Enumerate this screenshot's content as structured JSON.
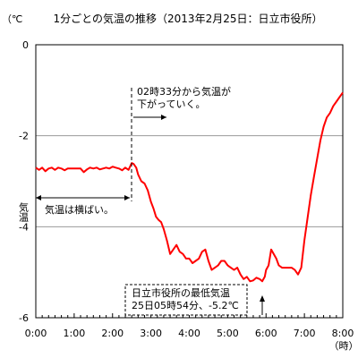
{
  "chart_data": {
    "type": "line",
    "title": "1分ごとの気温の推移（2013年2月25日：日立市役所）",
    "ylabel": "気温",
    "yunit": "（℃",
    "xunit": "（時）",
    "xlim": [
      0,
      8
    ],
    "ylim": [
      -6,
      0
    ],
    "x_ticks": [
      "0:00",
      "1:00",
      "2:00",
      "3:00",
      "4:00",
      "5:00",
      "6:00",
      "7:00",
      "8:00"
    ],
    "y_ticks": [
      "0",
      "-2",
      "-4",
      "-6"
    ],
    "grid": "horizontal",
    "color": "#ff0000",
    "series": [
      {
        "x": [
          "0:00",
          "0:05",
          "0:10",
          "0:15",
          "0:20",
          "0:25",
          "0:30",
          "0:35",
          "0:40",
          "0:45",
          "0:50",
          "0:55",
          "1:00",
          "1:05",
          "1:10",
          "1:15",
          "1:20",
          "1:25",
          "1:30",
          "1:35",
          "1:40",
          "1:45",
          "1:50",
          "1:55",
          "2:00",
          "2:05",
          "2:10",
          "2:15",
          "2:20",
          "2:25",
          "2:30",
          "2:33",
          "2:37",
          "2:40",
          "2:45",
          "2:50",
          "2:55",
          "3:00",
          "3:04",
          "3:08",
          "3:12",
          "3:16",
          "3:20",
          "3:25",
          "3:30",
          "3:35",
          "3:40",
          "3:45",
          "3:50",
          "3:55",
          "4:00",
          "4:05",
          "4:10",
          "4:15",
          "4:20",
          "4:25",
          "4:30",
          "4:35",
          "4:40",
          "4:45",
          "4:50",
          "4:55",
          "5:00",
          "5:05",
          "5:10",
          "5:15",
          "5:20",
          "5:25",
          "5:30",
          "5:35",
          "5:40",
          "5:45",
          "5:50",
          "5:54",
          "5:58",
          "6:00",
          "6:04",
          "6:08",
          "6:12",
          "6:16",
          "6:20",
          "6:25",
          "6:30",
          "6:35",
          "6:40",
          "6:45",
          "6:50",
          "6:55",
          "7:00",
          "7:05",
          "7:10",
          "7:15",
          "7:20",
          "7:25",
          "7:30",
          "7:35",
          "7:40",
          "7:45",
          "7:50",
          "7:55",
          "8:00"
        ],
        "values": [
          -2.7,
          -2.75,
          -2.7,
          -2.78,
          -2.72,
          -2.7,
          -2.75,
          -2.7,
          -2.72,
          -2.76,
          -2.72,
          -2.72,
          -2.72,
          -2.72,
          -2.72,
          -2.8,
          -2.74,
          -2.7,
          -2.72,
          -2.7,
          -2.74,
          -2.72,
          -2.7,
          -2.72,
          -2.68,
          -2.7,
          -2.72,
          -2.76,
          -2.7,
          -2.75,
          -2.6,
          -2.62,
          -2.7,
          -2.85,
          -3.0,
          -3.05,
          -3.2,
          -3.45,
          -3.6,
          -3.78,
          -3.85,
          -3.9,
          -4.05,
          -4.3,
          -4.6,
          -4.5,
          -4.4,
          -4.55,
          -4.6,
          -4.7,
          -4.7,
          -4.8,
          -4.75,
          -4.7,
          -4.55,
          -4.5,
          -4.75,
          -4.95,
          -4.9,
          -4.85,
          -4.75,
          -4.75,
          -4.85,
          -4.9,
          -4.95,
          -4.9,
          -5.05,
          -5.15,
          -5.1,
          -5.2,
          -5.18,
          -5.12,
          -5.15,
          -5.2,
          -5.1,
          -4.95,
          -4.85,
          -4.5,
          -4.6,
          -4.7,
          -4.85,
          -4.9,
          -4.9,
          -4.9,
          -4.9,
          -4.95,
          -5.05,
          -4.9,
          -4.3,
          -3.8,
          -3.3,
          -2.9,
          -2.5,
          -2.1,
          -1.8,
          -1.6,
          -1.5,
          -1.35,
          -1.25,
          -1.15,
          -1.05
        ]
      }
    ],
    "annotations": [
      {
        "text": "02時33分から気温が",
        "text2": "下がっていく。"
      },
      {
        "text": "気温は横ばい。"
      },
      {
        "text": "日立市役所の最低気温",
        "text2": "25日05時54分、-5.2℃"
      }
    ]
  }
}
